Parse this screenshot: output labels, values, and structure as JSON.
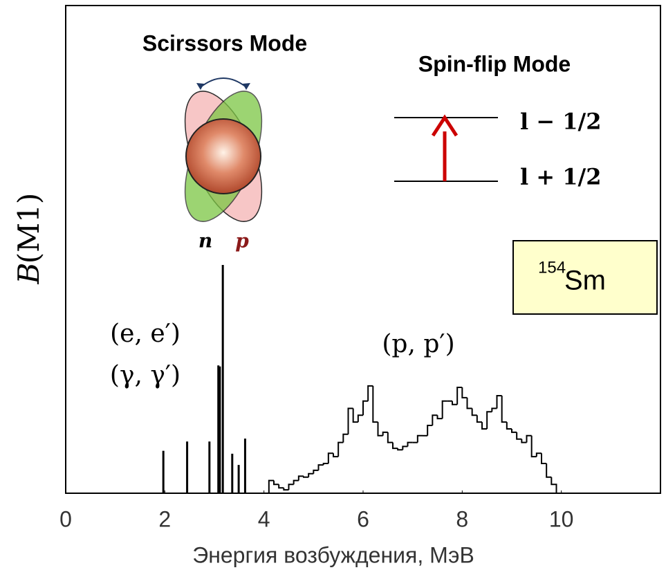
{
  "chart_data": {
    "type": "spectrum",
    "x_label": "Энергия  возбуждения,  МэВ",
    "y_label_symbol": "B",
    "y_label_arg": "(M1)",
    "xlim": [
      0,
      12
    ],
    "xticks": [
      0,
      2,
      4,
      6,
      8,
      10
    ],
    "ylim": [
      0,
      100
    ],
    "sticks": {
      "color": "#000000",
      "x": [
        1.97,
        2.45,
        2.9,
        3.08,
        3.11,
        3.17,
        3.36,
        3.49,
        3.62
      ],
      "values": [
        8.7,
        10.6,
        10.6,
        26.2,
        26.0,
        46.8,
        8.1,
        5.8,
        11.2
      ]
    },
    "histogram": {
      "color": "#000000",
      "bins": [
        4.1,
        4.2,
        4.3,
        4.4,
        4.5,
        4.6,
        4.7,
        4.8,
        4.9,
        5.0,
        5.1,
        5.2,
        5.3,
        5.4,
        5.5,
        5.6,
        5.7,
        5.8,
        5.9,
        6.0,
        6.1,
        6.2,
        6.3,
        6.4,
        6.5,
        6.6,
        6.7,
        6.8,
        6.9,
        7.0,
        7.1,
        7.2,
        7.3,
        7.4,
        7.5,
        7.6,
        7.7,
        7.8,
        7.9,
        8.0,
        8.1,
        8.2,
        8.3,
        8.4,
        8.5,
        8.6,
        8.7,
        8.8,
        8.9,
        9.0,
        9.1,
        9.2,
        9.3,
        9.4,
        9.5,
        9.6,
        9.7,
        9.8,
        9.9
      ],
      "values": [
        2.6,
        1.8,
        1.1,
        0.7,
        1.8,
        2.6,
        3.5,
        3.3,
        4.0,
        4.7,
        5.8,
        6.1,
        8.2,
        7.5,
        10.4,
        12.1,
        17.4,
        14.6,
        16.0,
        18.9,
        22.0,
        14.6,
        11.8,
        12.5,
        10.4,
        9.2,
        8.9,
        9.6,
        10.4,
        10.4,
        11.8,
        11.8,
        13.9,
        16.0,
        15.3,
        18.9,
        18.9,
        18.2,
        21.7,
        19.6,
        17.4,
        16.0,
        14.6,
        13.2,
        16.7,
        17.4,
        20.0,
        14.6,
        13.2,
        12.5,
        11.1,
        10.4,
        11.8,
        7.5,
        8.2,
        6.1,
        3.3,
        1.8
      ]
    },
    "annotations": {
      "ee": "(e, e′)",
      "gg": "(γ, γ′)",
      "pp": "(p, p′)"
    },
    "scissors": {
      "title": "Scirssors Mode",
      "n": "n",
      "p": "p"
    },
    "spin_flip": {
      "title": "Spin-flip Mode",
      "upper": "l − 1/2",
      "lower": "l + 1/2"
    },
    "nucleus": {
      "mass": "154",
      "element": "Sm"
    }
  }
}
